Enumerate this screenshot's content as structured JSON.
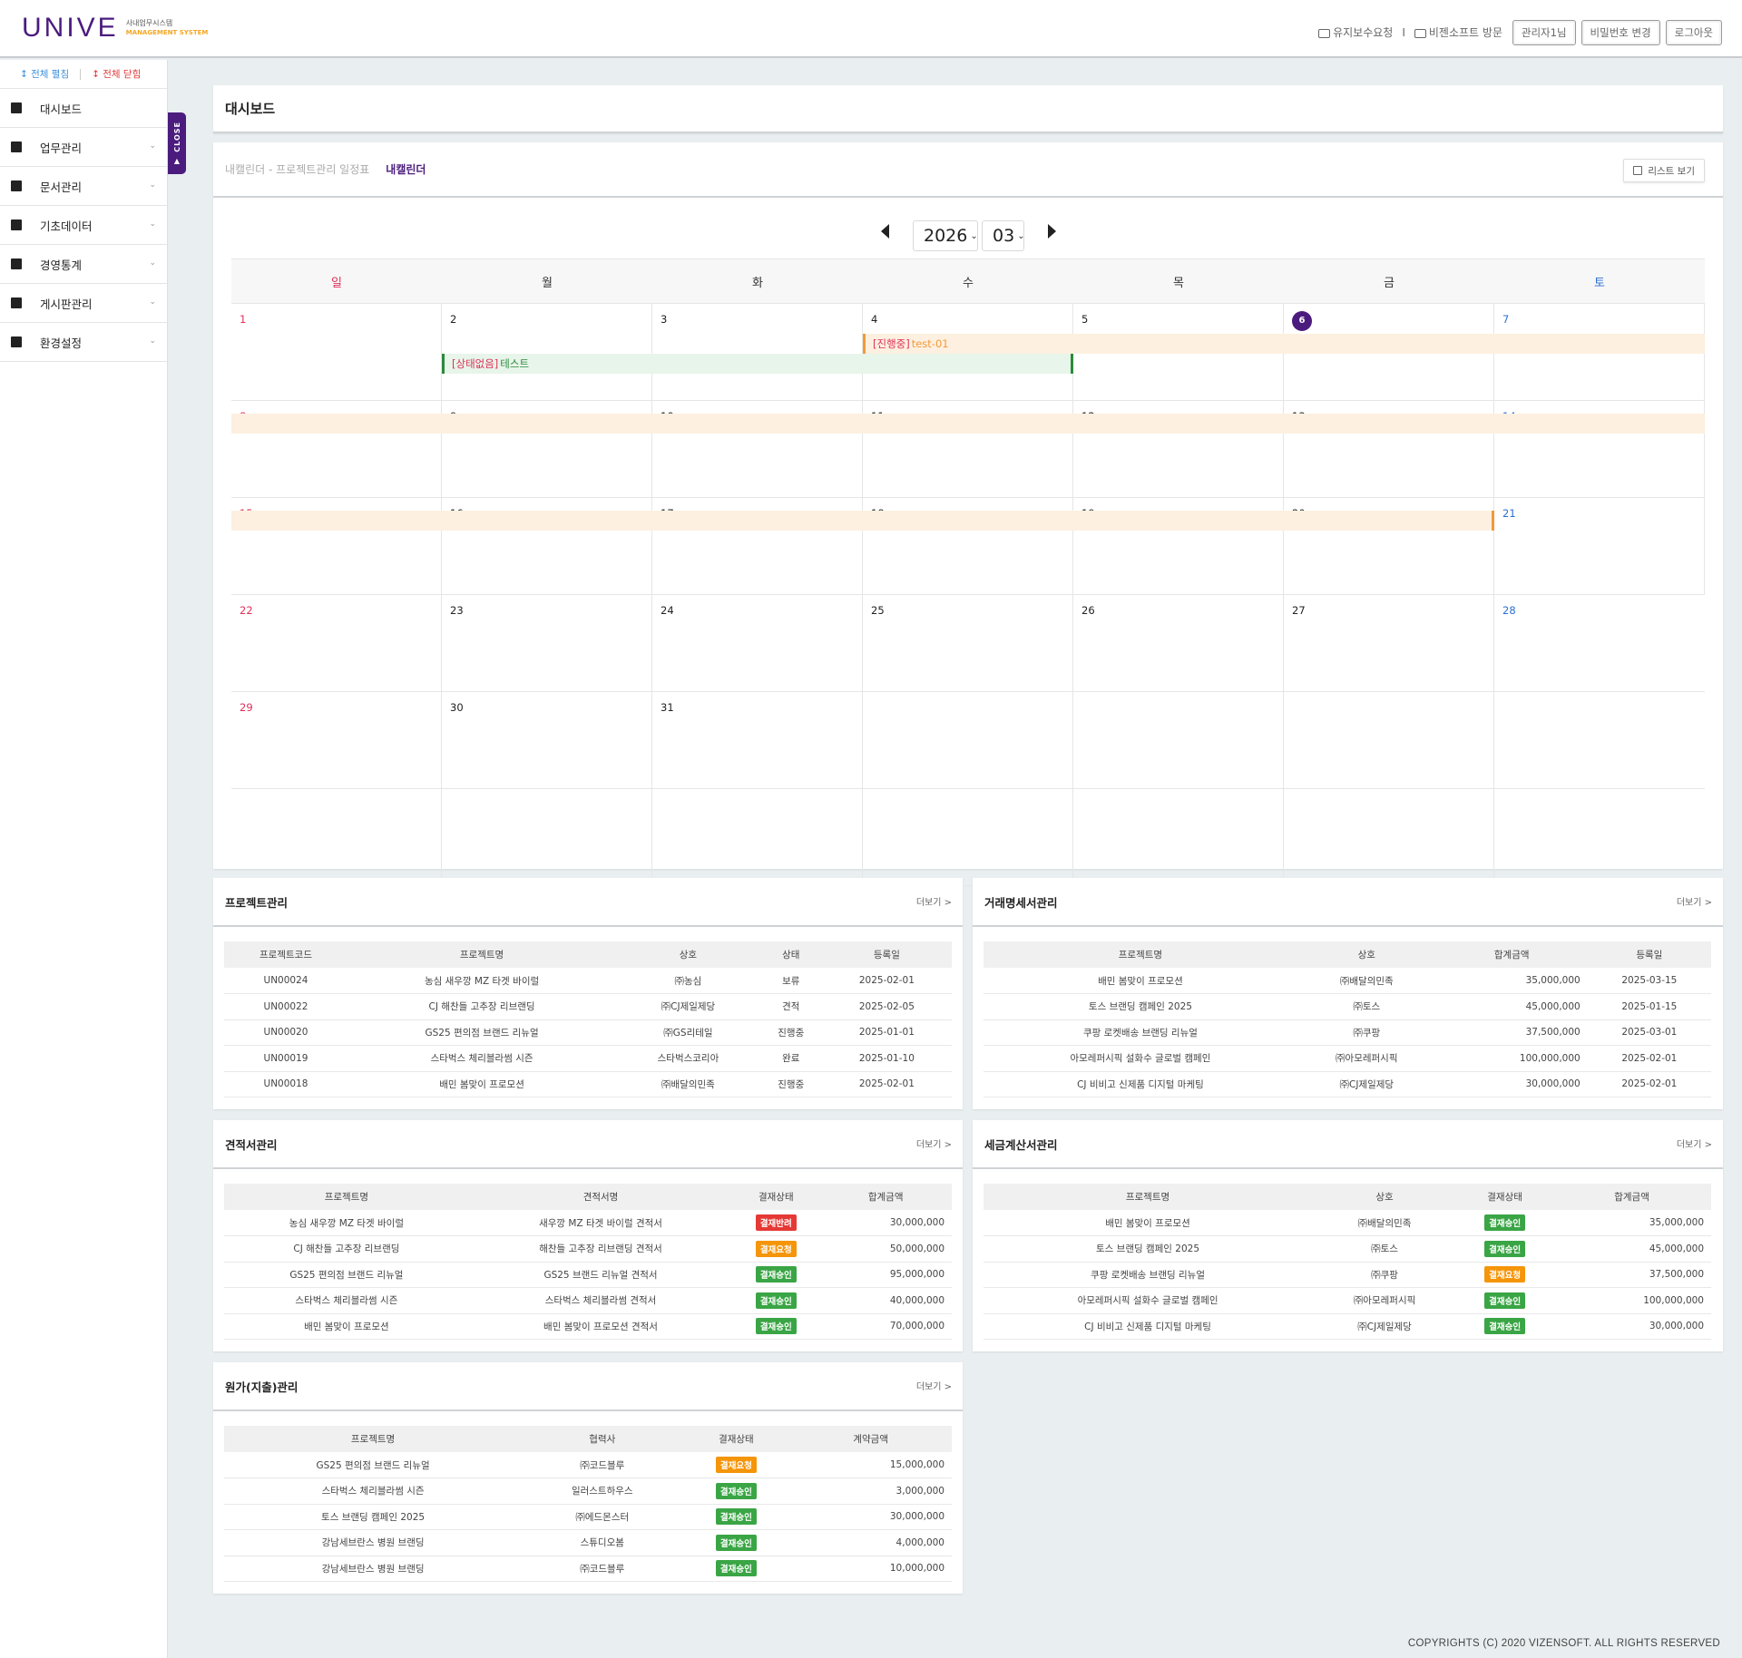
{
  "header": {
    "logo": "UNIVE",
    "logo_sub1": "사내업무시스템",
    "logo_sub2": "MANAGEMENT SYSTEM",
    "link_maintenance": "유지보수요청",
    "link_sep": "I",
    "link_visit": "비젠소프트 방문",
    "btn_user": "관리자1님",
    "btn_password": "비밀번호 변경",
    "btn_logout": "로그아웃"
  },
  "sidebar": {
    "expand_all": "↕ 전체 펼침",
    "collapse_all": "↕ 전체 닫힘",
    "close_tab": "CLOSE",
    "items": [
      {
        "label": "대시보드",
        "icon": "dashboard-icon"
      },
      {
        "label": "업무관리",
        "icon": "briefcase-icon"
      },
      {
        "label": "문서관리",
        "icon": "document-icon"
      },
      {
        "label": "기초데이터",
        "icon": "people-icon"
      },
      {
        "label": "경영통계",
        "icon": "chart-icon"
      },
      {
        "label": "게시판관리",
        "icon": "board-icon"
      },
      {
        "label": "환경설정",
        "icon": "gear-icon"
      }
    ]
  },
  "page": {
    "title": "대시보드"
  },
  "calendar": {
    "breadcrumb": "내캘린더 - 프로젝트관리 일정표",
    "active": "내캘린더",
    "list_view": "리스트 보기",
    "year": "2026",
    "month": "03",
    "dow": [
      "일",
      "월",
      "화",
      "수",
      "목",
      "금",
      "토"
    ],
    "weeks": [
      [
        "1",
        "2",
        "3",
        "4",
        "5",
        "6",
        "7"
      ],
      [
        "8",
        "9",
        "10",
        "11",
        "12",
        "13",
        "14"
      ],
      [
        "15",
        "16",
        "17",
        "18",
        "19",
        "20",
        "21"
      ],
      [
        "22",
        "23",
        "24",
        "25",
        "26",
        "27",
        "28"
      ],
      [
        "29",
        "30",
        "31",
        "",
        "",
        "",
        ""
      ],
      [
        "",
        "",
        "",
        "",
        "",
        "",
        ""
      ]
    ],
    "today": "6",
    "events": [
      {
        "status": "[진행중]",
        "name": "test-01",
        "color": "#f29a3a"
      },
      {
        "status": "[상태없음]",
        "name": "테스트",
        "color": "#2c8a3c"
      }
    ]
  },
  "projects": {
    "title": "프로젝트관리",
    "more": "더보기 >",
    "headers": [
      "프로젝트코드",
      "프로젝트명",
      "상호",
      "상태",
      "등록일"
    ],
    "rows": [
      [
        "UN00024",
        "농심 새우깡 MZ 타겟 바이럴",
        "㈜농심",
        "보류",
        "2025-02-01"
      ],
      [
        "UN00022",
        "CJ 해찬들 고추장 리브랜딩",
        "㈜CJ제일제당",
        "견적",
        "2025-02-05"
      ],
      [
        "UN00020",
        "GS25 편의점 브랜드 리뉴얼",
        "㈜GS리테일",
        "진행중",
        "2025-01-01"
      ],
      [
        "UN00019",
        "스타벅스 체리블라썸 시즌",
        "스타벅스코리아",
        "완료",
        "2025-01-10"
      ],
      [
        "UN00018",
        "배민 봄맞이 프로모션",
        "㈜배달의민족",
        "진행중",
        "2025-02-01"
      ]
    ]
  },
  "statements": {
    "title": "거래명세서관리",
    "more": "더보기 >",
    "headers": [
      "프로젝트명",
      "상호",
      "합계금액",
      "등록일"
    ],
    "rows": [
      [
        "배민 봄맞이 프로모션",
        "㈜배달의민족",
        "35,000,000",
        "2025-03-15"
      ],
      [
        "토스 브랜딩 캠페인 2025",
        "㈜토스",
        "45,000,000",
        "2025-01-15"
      ],
      [
        "쿠팡 로켓배송 브랜딩 리뉴얼",
        "㈜쿠팡",
        "37,500,000",
        "2025-03-01"
      ],
      [
        "아모레퍼시픽 설화수 글로벌 캠페인",
        "㈜아모레퍼시픽",
        "100,000,000",
        "2025-02-01"
      ],
      [
        "CJ 비비고 신제품 디지털 마케팅",
        "㈜CJ제일제당",
        "30,000,000",
        "2025-02-01"
      ]
    ]
  },
  "quotes": {
    "title": "견적서관리",
    "more": "더보기 >",
    "headers": [
      "프로젝트명",
      "견적서명",
      "결재상태",
      "합계금액"
    ],
    "rows": [
      [
        "농심 새우깡 MZ 타겟 바이럴",
        "새우깡 MZ 타겟 바이럴 견적서",
        "결재반려",
        "30,000,000",
        "red"
      ],
      [
        "CJ 해찬들 고추장 리브랜딩",
        "해찬들 고추장 리브랜딩 견적서",
        "결재요청",
        "50,000,000",
        "orange"
      ],
      [
        "GS25 편의점 브랜드 리뉴얼",
        "GS25 브랜드 리뉴얼 견적서",
        "결재승인",
        "95,000,000",
        "green"
      ],
      [
        "스타벅스 체리블라썸 시즌",
        "스타벅스 체리블라썸 견적서",
        "결재승인",
        "40,000,000",
        "green"
      ],
      [
        "배민 봄맞이 프로모션",
        "배민 봄맞이 프로모션 견적서",
        "결재승인",
        "70,000,000",
        "green"
      ]
    ]
  },
  "tax": {
    "title": "세금계산서관리",
    "more": "더보기 >",
    "headers": [
      "프로젝트명",
      "상호",
      "결재상태",
      "합계금액"
    ],
    "rows": [
      [
        "배민 봄맞이 프로모션",
        "㈜배달의민족",
        "결재승인",
        "35,000,000",
        "green"
      ],
      [
        "토스 브랜딩 캠페인 2025",
        "㈜토스",
        "결재승인",
        "45,000,000",
        "green"
      ],
      [
        "쿠팡 로켓배송 브랜딩 리뉴얼",
        "㈜쿠팡",
        "결재요청",
        "37,500,000",
        "orange"
      ],
      [
        "아모레퍼시픽 설화수 글로벌 캠페인",
        "㈜아모레퍼시픽",
        "결재승인",
        "100,000,000",
        "green"
      ],
      [
        "CJ 비비고 신제품 디지털 마케팅",
        "㈜CJ제일제당",
        "결재승인",
        "30,000,000",
        "green"
      ]
    ]
  },
  "costs": {
    "title": "원가(지출)관리",
    "more": "더보기 >",
    "headers": [
      "프로젝트명",
      "협력사",
      "결재상태",
      "계약금액"
    ],
    "rows": [
      [
        "GS25 편의점 브랜드 리뉴얼",
        "㈜코드블루",
        "결재요청",
        "15,000,000",
        "orange"
      ],
      [
        "스타벅스 체리블라썸 시즌",
        "일러스트하우스",
        "결재승인",
        "3,000,000",
        "green"
      ],
      [
        "토스 브랜딩 캠페인 2025",
        "㈜에드몬스터",
        "결재승인",
        "30,000,000",
        "green"
      ],
      [
        "강남세브란스 병원 브랜딩",
        "스튜디오봄",
        "결재승인",
        "4,000,000",
        "green"
      ],
      [
        "강남세브란스 병원 브랜딩",
        "㈜코드블루",
        "결재승인",
        "10,000,000",
        "green"
      ]
    ]
  },
  "footer": "COPYRIGHTS (C) 2020 VIZENSOFT. ALL RIGHTS RESERVED",
  "colors": {
    "brand": "#4b1b7e",
    "accent": "#f5a623"
  }
}
